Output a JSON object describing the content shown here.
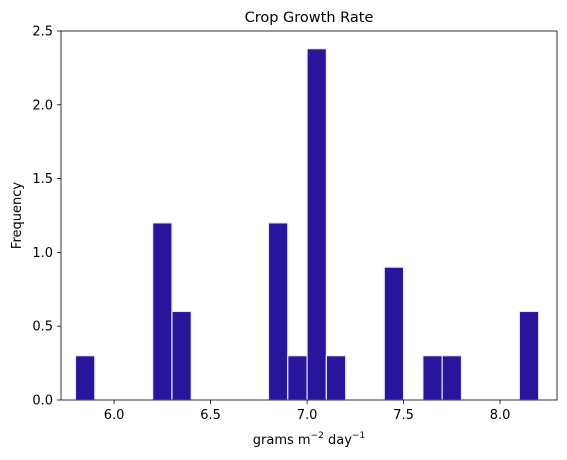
{
  "chart_data": {
    "type": "bar",
    "title": "Crop Growth Rate",
    "xlabel_parts": {
      "base": "grams m",
      "exp1": "−2",
      "mid": " day",
      "exp2": "−1"
    },
    "ylabel": "Frequency",
    "xlim": [
      5.725,
      8.295
    ],
    "ylim": [
      0,
      2.5
    ],
    "xticks": [
      6.0,
      6.5,
      7.0,
      7.5,
      8.0
    ],
    "xtick_labels": [
      "6.0",
      "6.5",
      "7.0",
      "7.5",
      "8.0"
    ],
    "yticks": [
      0.0,
      0.5,
      1.0,
      1.5,
      2.0,
      2.5
    ],
    "ytick_labels": [
      "0.0",
      "0.5",
      "1.0",
      "1.5",
      "2.0",
      "2.5"
    ],
    "bin_edges": [
      5.8,
      5.9,
      6.0,
      6.1,
      6.2,
      6.3,
      6.4,
      6.5,
      6.6,
      6.7,
      6.8,
      6.9,
      7.0,
      7.1,
      7.2,
      7.3,
      7.4,
      7.5,
      7.6,
      7.7,
      7.8,
      7.9,
      8.0,
      8.1,
      8.2
    ],
    "values": [
      0.3,
      0,
      0,
      0,
      1.2,
      0.6,
      0,
      0,
      0,
      0,
      1.2,
      0.3,
      2.38,
      0.3,
      0,
      0,
      0.9,
      0,
      0.3,
      0.3,
      0,
      0,
      0,
      0.6
    ],
    "bar_color": "#28159c",
    "bar_edge_color": "#e8e8f0"
  }
}
